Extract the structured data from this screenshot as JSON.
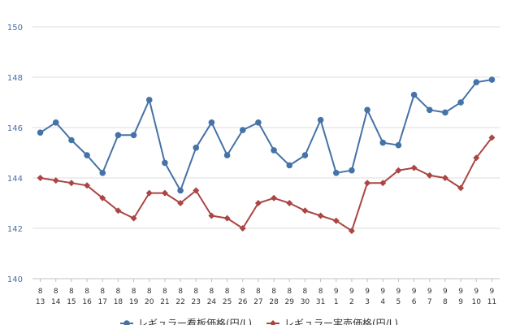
{
  "chart_data": {
    "type": "line",
    "categories": [
      [
        "8",
        "13"
      ],
      [
        "8",
        "14"
      ],
      [
        "8",
        "15"
      ],
      [
        "8",
        "16"
      ],
      [
        "8",
        "17"
      ],
      [
        "8",
        "18"
      ],
      [
        "8",
        "19"
      ],
      [
        "8",
        "20"
      ],
      [
        "8",
        "21"
      ],
      [
        "8",
        "22"
      ],
      [
        "8",
        "23"
      ],
      [
        "8",
        "24"
      ],
      [
        "8",
        "25"
      ],
      [
        "8",
        "26"
      ],
      [
        "8",
        "27"
      ],
      [
        "8",
        "28"
      ],
      [
        "8",
        "29"
      ],
      [
        "8",
        "30"
      ],
      [
        "8",
        "31"
      ],
      [
        "9",
        "1"
      ],
      [
        "9",
        "2"
      ],
      [
        "9",
        "3"
      ],
      [
        "9",
        "4"
      ],
      [
        "9",
        "5"
      ],
      [
        "9",
        "6"
      ],
      [
        "9",
        "7"
      ],
      [
        "9",
        "8"
      ],
      [
        "9",
        "9"
      ],
      [
        "9",
        "10"
      ],
      [
        "9",
        "11"
      ]
    ],
    "ylim": [
      140,
      150
    ],
    "yticks": [
      140,
      142,
      144,
      146,
      148,
      150
    ],
    "grid": true,
    "legend_position": "bottom",
    "series": [
      {
        "name": "レギュラー看板価格(円/L)",
        "color": "#4572a7",
        "marker": "circle",
        "values": [
          145.8,
          146.2,
          145.5,
          144.9,
          144.2,
          145.7,
          145.7,
          147.1,
          144.6,
          143.5,
          145.2,
          146.2,
          144.9,
          145.9,
          146.2,
          145.1,
          144.5,
          144.9,
          146.3,
          144.2,
          144.3,
          146.7,
          145.4,
          145.3,
          147.3,
          146.7,
          146.6,
          147.0,
          147.8,
          147.9
        ]
      },
      {
        "name": "レギュラー実売価格(円/L)",
        "color": "#aa4643",
        "marker": "diamond",
        "values": [
          144.0,
          143.9,
          143.8,
          143.7,
          143.2,
          142.7,
          142.4,
          143.4,
          143.4,
          143.0,
          143.5,
          142.5,
          142.4,
          142.0,
          143.0,
          143.2,
          143.0,
          142.7,
          142.5,
          142.3,
          141.9,
          143.8,
          143.8,
          144.3,
          144.4,
          144.1,
          144.0,
          143.6,
          144.8,
          145.6
        ]
      }
    ]
  }
}
